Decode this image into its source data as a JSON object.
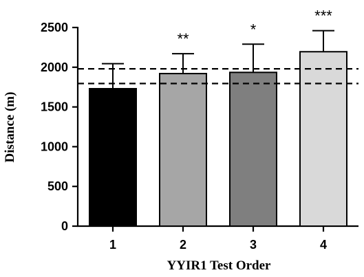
{
  "chart_data": {
    "type": "bar",
    "categories": [
      "1",
      "2",
      "3",
      "4"
    ],
    "values": [
      1730,
      1920,
      1935,
      2195
    ],
    "error_upper": [
      2045,
      2170,
      2290,
      2460
    ],
    "significance": [
      "",
      "**",
      "*",
      "***"
    ],
    "bar_colors": [
      "#000000",
      "#a6a6a6",
      "#7f7f7f",
      "#d9d9d9"
    ],
    "reference_lines": [
      1980,
      1795
    ],
    "xlabel": "YYIR1 Test Order",
    "ylabel": "Distance (m)",
    "ylim": [
      0,
      2500
    ],
    "yticks": [
      0,
      500,
      1000,
      1500,
      2000,
      2500
    ],
    "grid": false
  }
}
